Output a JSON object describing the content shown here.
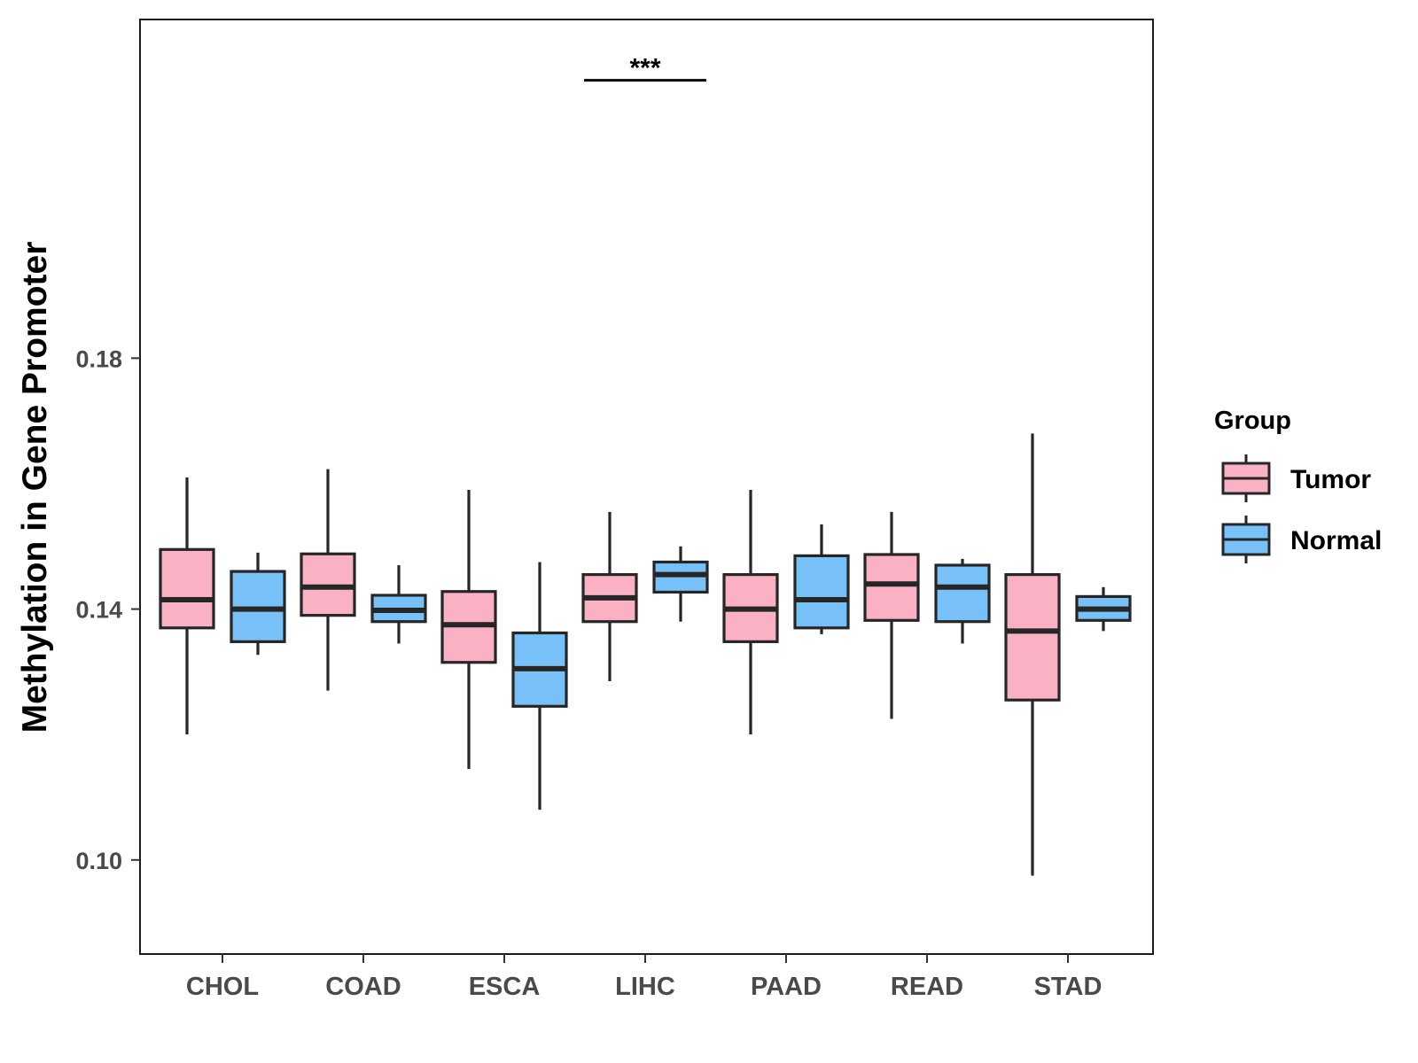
{
  "chart_data": {
    "type": "boxplot",
    "title": "",
    "xlabel": "",
    "ylabel": "Methylation in Gene Promoter",
    "ylim": [
      0.085,
      0.234
    ],
    "yticks": [
      0.1,
      0.14,
      0.18
    ],
    "ytick_labels": [
      "0.10",
      "0.14",
      "0.18"
    ],
    "grid": false,
    "legend": {
      "title": "Group",
      "position": "right",
      "entries": [
        {
          "name": "Tumor",
          "color": "#fbb1c4"
        },
        {
          "name": "Normal",
          "color": "#78c1f8"
        }
      ]
    },
    "categories": [
      "CHOL",
      "COAD",
      "ESCA",
      "LIHC",
      "PAAD",
      "READ",
      "STAD"
    ],
    "series": [
      {
        "name": "Tumor",
        "color": "#fbb1c4",
        "boxes": [
          {
            "min": 0.12,
            "q1": 0.137,
            "median": 0.1415,
            "q3": 0.1495,
            "max": 0.161
          },
          {
            "min": 0.127,
            "q1": 0.139,
            "median": 0.1435,
            "q3": 0.1488,
            "max": 0.1623
          },
          {
            "min": 0.1145,
            "q1": 0.1315,
            "median": 0.1375,
            "q3": 0.1428,
            "max": 0.159
          },
          {
            "min": 0.1285,
            "q1": 0.138,
            "median": 0.1418,
            "q3": 0.1455,
            "max": 0.1555
          },
          {
            "min": 0.12,
            "q1": 0.1348,
            "median": 0.14,
            "q3": 0.1455,
            "max": 0.159
          },
          {
            "min": 0.1225,
            "q1": 0.1382,
            "median": 0.144,
            "q3": 0.1487,
            "max": 0.1555
          },
          {
            "min": 0.0975,
            "q1": 0.1255,
            "median": 0.1365,
            "q3": 0.1455,
            "max": 0.168
          }
        ]
      },
      {
        "name": "Normal",
        "color": "#78c1f8",
        "boxes": [
          {
            "min": 0.1327,
            "q1": 0.1348,
            "median": 0.14,
            "q3": 0.146,
            "max": 0.149
          },
          {
            "min": 0.1345,
            "q1": 0.138,
            "median": 0.1398,
            "q3": 0.1422,
            "max": 0.147
          },
          {
            "min": 0.108,
            "q1": 0.1245,
            "median": 0.1305,
            "q3": 0.1362,
            "max": 0.1475
          },
          {
            "min": 0.138,
            "q1": 0.1427,
            "median": 0.1455,
            "q3": 0.1475,
            "max": 0.15
          },
          {
            "min": 0.136,
            "q1": 0.137,
            "median": 0.1415,
            "q3": 0.1485,
            "max": 0.1535
          },
          {
            "min": 0.1345,
            "q1": 0.138,
            "median": 0.1435,
            "q3": 0.147,
            "max": 0.148
          },
          {
            "min": 0.1365,
            "q1": 0.1382,
            "median": 0.14,
            "q3": 0.142,
            "max": 0.1435
          }
        ]
      }
    ],
    "annotations": [
      {
        "category": "LIHC",
        "text": "***",
        "level": 0.2243
      }
    ]
  }
}
